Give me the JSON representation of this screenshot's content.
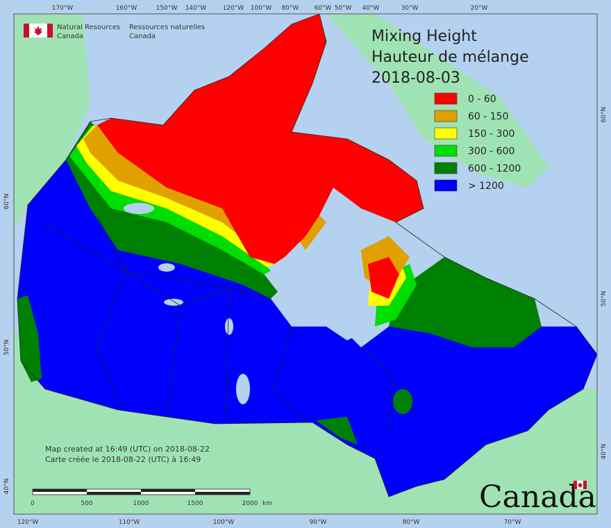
{
  "agency": {
    "en_line1": "Natural Resources",
    "en_line2": "Canada",
    "fr_line1": "Ressources naturelles",
    "fr_line2": "Canada"
  },
  "title": {
    "en": "Mixing Height",
    "fr": "Hauteur de mélange",
    "date": "2018-08-03"
  },
  "legend": [
    {
      "label": "0 - 60",
      "color": "#ff0000"
    },
    {
      "label": "60 - 150",
      "color": "#e0a000"
    },
    {
      "label": "150 - 300",
      "color": "#ffff00"
    },
    {
      "label": "300 - 600",
      "color": "#00dd00"
    },
    {
      "label": "600 - 1200",
      "color": "#008000"
    },
    {
      "label": "> 1200",
      "color": "#0000ff"
    }
  ],
  "top_longitudes": [
    "170°W",
    "160°W",
    "150°W",
    "140°W",
    "120°W",
    "100°W",
    "80°W",
    "60°W",
    "50°W",
    "40°W",
    "30°W",
    "20°W"
  ],
  "bottom_longitudes": [
    "120°W",
    "110°W",
    "100°W",
    "90°W",
    "80°W",
    "70°W"
  ],
  "left_latitudes": [
    "60°N",
    "50°N",
    "40°N"
  ],
  "right_latitudes": [
    "60°N",
    "50°N",
    "40°N"
  ],
  "credit": {
    "en": "Map created at 16:49 (UTC) on 2018-08-22",
    "fr": "Carte créée le 2018-08-22 (UTC) à 16:49"
  },
  "scale_bar": {
    "ticks": [
      "0",
      "500",
      "1000",
      "1500",
      "2000"
    ],
    "unit": "km"
  },
  "wordmark": "Canada",
  "colors": {
    "ocean": "#b4d2ef",
    "land": "#9fe3b4",
    "border": "#222222"
  }
}
